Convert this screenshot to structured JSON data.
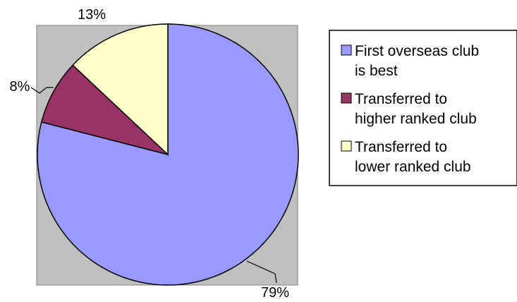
{
  "chart_data": {
    "type": "pie",
    "title": "",
    "slices": [
      {
        "label": "First overseas club is best",
        "value": 79,
        "value_label": "79%",
        "color": "#9999ff"
      },
      {
        "label": "Transferred to higher ranked club",
        "value": 8,
        "value_label": "8%",
        "color": "#993366"
      },
      {
        "label": "Transferred to lower ranked club",
        "value": 13,
        "value_label": "13%",
        "color": "#ffffcc"
      }
    ],
    "legend": {
      "placement": "right",
      "entries": [
        {
          "lines": [
            "First overseas club",
            "is best"
          ],
          "color": "#9999ff"
        },
        {
          "lines": [
            "Transferred to",
            "higher ranked club"
          ],
          "color": "#993366"
        },
        {
          "lines": [
            "Transferred to",
            "lower ranked club"
          ],
          "color": "#ffffcc"
        }
      ]
    },
    "plot_background": "#c0c0c0"
  }
}
